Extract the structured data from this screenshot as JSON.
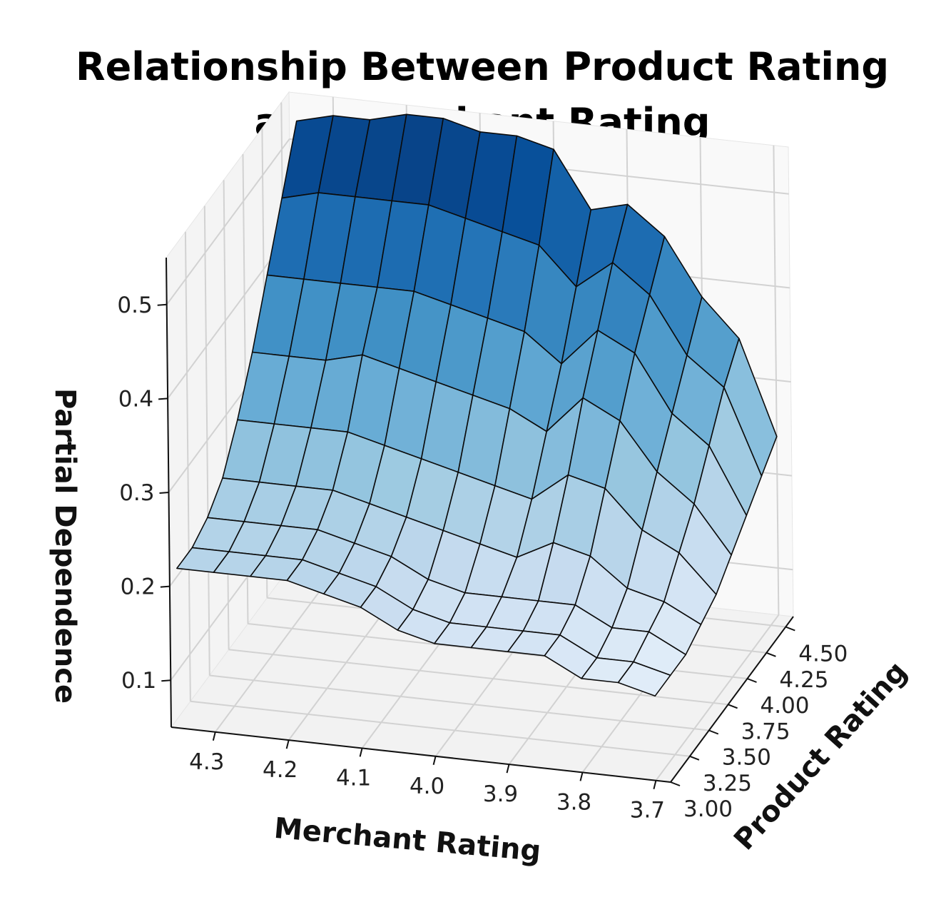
{
  "chart_data": {
    "type": "surface",
    "title": "Relationship Between Product Rating and Merchant Rating",
    "title_lines": [
      "Relationship Between Product Rating",
      "and Merchant Rating"
    ],
    "xlabel": "Merchant Rating",
    "ylabel": "Product Rating",
    "zlabel": "Partial Dependence",
    "xlim": [
      3.68,
      4.36
    ],
    "ylim": [
      3.0,
      4.6
    ],
    "zlim": [
      0.05,
      0.55
    ],
    "x_ticks": [
      "4.3",
      "4.2",
      "4.1",
      "4.0",
      "3.9",
      "3.8",
      "3.7"
    ],
    "y_ticks": [
      "3.00",
      "3.25",
      "3.50",
      "3.75",
      "4.00",
      "4.25",
      "4.50"
    ],
    "z_ticks": [
      "0.1",
      "0.2",
      "0.3",
      "0.4",
      "0.5"
    ],
    "colormap": "Blues",
    "colormap_stops": [
      "#e3eef9",
      "#c6dbef",
      "#9ecae1",
      "#6baed6",
      "#4292c6",
      "#2171b5",
      "#08519c",
      "#08306b"
    ],
    "merchant_rating": [
      4.35,
      4.3,
      4.25,
      4.2,
      4.15,
      4.1,
      4.05,
      4.0,
      3.95,
      3.9,
      3.85,
      3.8,
      3.75,
      3.7
    ],
    "product_rating": [
      3.0,
      3.2,
      3.4,
      3.6,
      3.8,
      4.0,
      4.2,
      4.4,
      4.6
    ],
    "partial_dependence": [
      [
        0.22,
        0.22,
        0.23,
        0.25,
        0.29,
        0.34,
        0.4,
        0.46,
        0.52
      ],
      [
        0.22,
        0.22,
        0.23,
        0.25,
        0.29,
        0.34,
        0.4,
        0.47,
        0.53
      ],
      [
        0.22,
        0.22,
        0.23,
        0.25,
        0.29,
        0.34,
        0.4,
        0.47,
        0.53
      ],
      [
        0.22,
        0.22,
        0.23,
        0.25,
        0.29,
        0.35,
        0.4,
        0.47,
        0.54
      ],
      [
        0.21,
        0.21,
        0.22,
        0.24,
        0.28,
        0.34,
        0.4,
        0.47,
        0.54
      ],
      [
        0.2,
        0.2,
        0.21,
        0.23,
        0.27,
        0.33,
        0.39,
        0.46,
        0.53
      ],
      [
        0.18,
        0.18,
        0.19,
        0.22,
        0.26,
        0.32,
        0.38,
        0.45,
        0.53
      ],
      [
        0.17,
        0.17,
        0.18,
        0.21,
        0.25,
        0.31,
        0.37,
        0.44,
        0.52
      ],
      [
        0.17,
        0.17,
        0.18,
        0.2,
        0.24,
        0.29,
        0.34,
        0.4,
        0.46
      ],
      [
        0.17,
        0.17,
        0.18,
        0.22,
        0.27,
        0.33,
        0.38,
        0.43,
        0.47
      ],
      [
        0.17,
        0.17,
        0.18,
        0.21,
        0.26,
        0.31,
        0.36,
        0.4,
        0.44
      ],
      [
        0.15,
        0.15,
        0.16,
        0.18,
        0.22,
        0.26,
        0.3,
        0.34,
        0.38
      ],
      [
        0.15,
        0.15,
        0.16,
        0.17,
        0.2,
        0.23,
        0.27,
        0.31,
        0.34
      ],
      [
        0.14,
        0.14,
        0.14,
        0.15,
        0.16,
        0.18,
        0.2,
        0.22,
        0.24
      ]
    ],
    "grid": true
  }
}
